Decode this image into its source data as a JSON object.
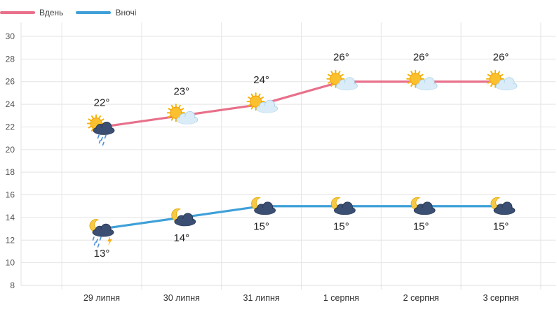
{
  "chart_data": {
    "type": "line",
    "categories": [
      "29 липня",
      "30 липня",
      "31 липня",
      "1 серпня",
      "2 серпня",
      "3 серпня"
    ],
    "series": [
      {
        "name": "Вдень",
        "color": "#e8708a",
        "values": [
          22,
          23,
          24,
          26,
          26,
          26
        ],
        "labels": [
          "22°",
          "23°",
          "24°",
          "26°",
          "26°",
          "26°"
        ],
        "icons": [
          "sun-rain-cloud-icon",
          "sun-cloud-icon",
          "sun-cloud-icon",
          "sun-cloud-icon",
          "sun-cloud-icon",
          "sun-cloud-icon"
        ]
      },
      {
        "name": "Вночі",
        "color": "#3fa0d8",
        "values": [
          13,
          14,
          15,
          15,
          15,
          15
        ],
        "labels": [
          "13°",
          "14°",
          "15°",
          "15°",
          "15°",
          "15°"
        ],
        "icons": [
          "moon-storm-icon",
          "moon-cloud-icon",
          "moon-cloud-icon",
          "moon-cloud-icon",
          "moon-cloud-icon",
          "moon-cloud-icon"
        ]
      }
    ],
    "yticks": [
      "30",
      "28",
      "26",
      "24",
      "22",
      "20",
      "18",
      "16",
      "14",
      "12",
      "10",
      "8"
    ],
    "ylim": [
      8,
      30
    ],
    "grid": true,
    "legend_position": "top-left"
  }
}
